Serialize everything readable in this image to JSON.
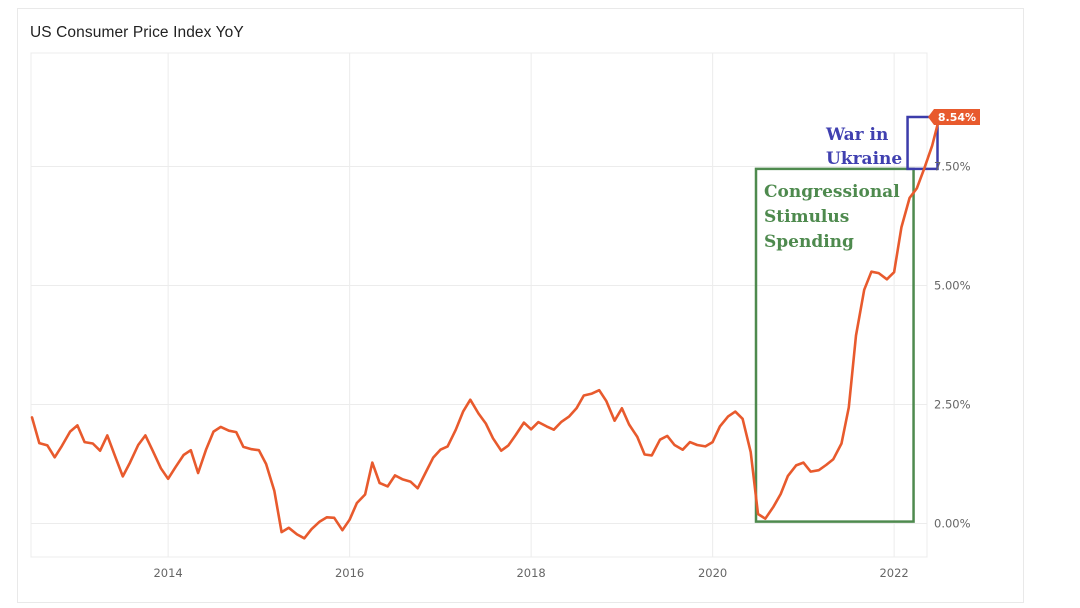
{
  "title": "US Consumer Price Index YoY",
  "colors": {
    "line": "#e85a2d",
    "grid": "#ececec",
    "stimulus_box": "#4e8a4e",
    "war_box": "#3c3caa",
    "badge": "#e85a2d"
  },
  "chart_data": {
    "type": "line",
    "title": "US Consumer Price Index YoY",
    "xlabel": "",
    "ylabel": "",
    "x_ticks": [
      "2014",
      "2016",
      "2018",
      "2020",
      "2022"
    ],
    "y_ticks": [
      "0.00%",
      "2.50%",
      "5.00%",
      "7.50%"
    ],
    "xlim": [
      2012.5,
      2022.25
    ],
    "ylim": [
      -0.6,
      9.8
    ],
    "grid": true,
    "series": [
      {
        "values": [
          [
            2012.5,
            2.23
          ],
          [
            2012.58,
            1.69
          ],
          [
            2012.67,
            1.64
          ],
          [
            2012.75,
            1.39
          ],
          [
            2012.83,
            1.63
          ],
          [
            2012.92,
            1.93
          ],
          [
            2013.0,
            2.06
          ],
          [
            2013.08,
            1.71
          ],
          [
            2013.17,
            1.68
          ],
          [
            2013.25,
            1.53
          ],
          [
            2013.33,
            1.85
          ],
          [
            2013.42,
            1.39
          ],
          [
            2013.5,
            0.99
          ],
          [
            2013.58,
            1.28
          ],
          [
            2013.67,
            1.65
          ],
          [
            2013.75,
            1.85
          ],
          [
            2013.83,
            1.53
          ],
          [
            2013.92,
            1.16
          ],
          [
            2014.0,
            0.94
          ],
          [
            2014.08,
            1.18
          ],
          [
            2014.17,
            1.44
          ],
          [
            2014.25,
            1.54
          ],
          [
            2014.33,
            1.06
          ],
          [
            2014.42,
            1.56
          ],
          [
            2014.5,
            1.93
          ],
          [
            2014.58,
            2.03
          ],
          [
            2014.67,
            1.95
          ],
          [
            2014.75,
            1.92
          ],
          [
            2014.83,
            1.61
          ],
          [
            2014.92,
            1.56
          ],
          [
            2015.0,
            1.54
          ],
          [
            2015.08,
            1.25
          ],
          [
            2015.17,
            0.69
          ],
          [
            2015.25,
            -0.18
          ],
          [
            2015.33,
            -0.09
          ],
          [
            2015.42,
            -0.23
          ],
          [
            2015.5,
            -0.31
          ],
          [
            2015.58,
            -0.12
          ],
          [
            2015.67,
            0.04
          ],
          [
            2015.75,
            0.13
          ],
          [
            2015.83,
            0.12
          ],
          [
            2015.92,
            -0.14
          ],
          [
            2016.0,
            0.08
          ],
          [
            2016.08,
            0.43
          ],
          [
            2016.17,
            0.61
          ],
          [
            2016.25,
            1.28
          ],
          [
            2016.33,
            0.85
          ],
          [
            2016.42,
            0.78
          ],
          [
            2016.5,
            1.01
          ],
          [
            2016.58,
            0.93
          ],
          [
            2016.67,
            0.88
          ],
          [
            2016.75,
            0.74
          ],
          [
            2016.83,
            1.04
          ],
          [
            2016.92,
            1.38
          ],
          [
            2017.0,
            1.55
          ],
          [
            2017.08,
            1.62
          ],
          [
            2017.17,
            1.97
          ],
          [
            2017.25,
            2.35
          ],
          [
            2017.33,
            2.6
          ],
          [
            2017.42,
            2.31
          ],
          [
            2017.5,
            2.1
          ],
          [
            2017.58,
            1.79
          ],
          [
            2017.67,
            1.53
          ],
          [
            2017.75,
            1.64
          ],
          [
            2017.83,
            1.86
          ],
          [
            2017.92,
            2.12
          ],
          [
            2018.0,
            1.98
          ],
          [
            2018.08,
            2.13
          ],
          [
            2018.17,
            2.04
          ],
          [
            2018.25,
            1.97
          ],
          [
            2018.33,
            2.13
          ],
          [
            2018.42,
            2.25
          ],
          [
            2018.5,
            2.42
          ],
          [
            2018.58,
            2.69
          ],
          [
            2018.67,
            2.73
          ],
          [
            2018.75,
            2.8
          ],
          [
            2018.83,
            2.57
          ],
          [
            2018.92,
            2.16
          ],
          [
            2019.0,
            2.42
          ],
          [
            2019.08,
            2.08
          ],
          [
            2019.17,
            1.82
          ],
          [
            2019.25,
            1.45
          ],
          [
            2019.33,
            1.43
          ],
          [
            2019.42,
            1.76
          ],
          [
            2019.5,
            1.84
          ],
          [
            2019.58,
            1.65
          ],
          [
            2019.67,
            1.55
          ],
          [
            2019.75,
            1.71
          ],
          [
            2019.83,
            1.65
          ],
          [
            2019.92,
            1.62
          ],
          [
            2020.0,
            1.71
          ],
          [
            2020.08,
            2.04
          ],
          [
            2020.17,
            2.25
          ],
          [
            2020.25,
            2.35
          ],
          [
            2020.33,
            2.2
          ],
          [
            2020.42,
            1.5
          ],
          [
            2020.5,
            0.2
          ],
          [
            2020.58,
            0.1
          ],
          [
            2020.67,
            0.35
          ],
          [
            2020.75,
            0.62
          ],
          [
            2020.83,
            1.0
          ],
          [
            2020.92,
            1.22
          ],
          [
            2021.0,
            1.28
          ],
          [
            2021.08,
            1.09
          ],
          [
            2021.17,
            1.12
          ],
          [
            2021.25,
            1.23
          ],
          [
            2021.33,
            1.35
          ],
          [
            2021.42,
            1.68
          ],
          [
            2021.5,
            2.44
          ],
          [
            2021.58,
            3.95
          ],
          [
            2021.67,
            4.91
          ],
          [
            2021.75,
            5.29
          ],
          [
            2021.83,
            5.26
          ],
          [
            2021.92,
            5.13
          ],
          [
            2022.0,
            5.28
          ],
          [
            2022.08,
            6.22
          ],
          [
            2022.17,
            6.84
          ],
          [
            2022.25,
            7.04
          ],
          [
            2022.33,
            7.45
          ],
          [
            2022.42,
            7.94
          ],
          [
            2022.5,
            8.54
          ]
        ]
      }
    ],
    "last_value_label": "8.54%",
    "annotations": [
      {
        "text_lines": [
          "Congressional",
          "Stimulus",
          "Spending"
        ]
      },
      {
        "text_lines": [
          "War in",
          "Ukraine"
        ]
      }
    ]
  }
}
